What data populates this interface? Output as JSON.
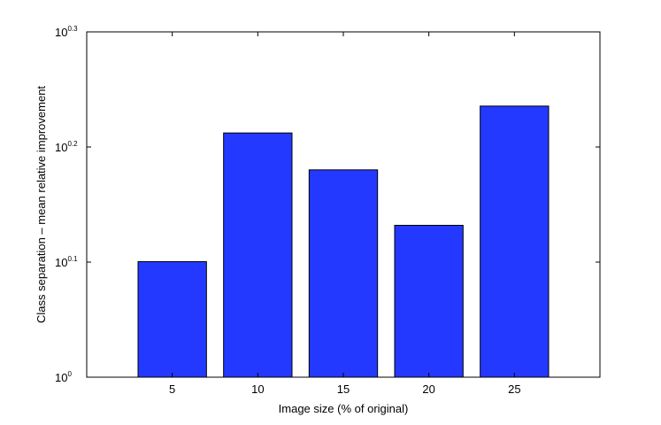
{
  "chart_data": {
    "type": "bar",
    "categories": [
      "5",
      "10",
      "15",
      "20",
      "25"
    ],
    "values": [
      1.26,
      1.63,
      1.514,
      1.355,
      1.72
    ],
    "title": "",
    "xlabel": "Image size (% of original)",
    "ylabel": "Class separation – mean relative improvement",
    "yscale": "log",
    "ylim": [
      1,
      1.9953
    ],
    "yticks": [
      {
        "value": 1,
        "base": "10",
        "exp": "0"
      },
      {
        "value": 1.2589,
        "base": "10",
        "exp": "0.1"
      },
      {
        "value": 1.5849,
        "base": "10",
        "exp": "0.2"
      },
      {
        "value": 1.9953,
        "base": "10",
        "exp": "0.3"
      }
    ],
    "grid": false,
    "colors": {
      "bar": "#2339ff",
      "edge": "#000000"
    }
  }
}
